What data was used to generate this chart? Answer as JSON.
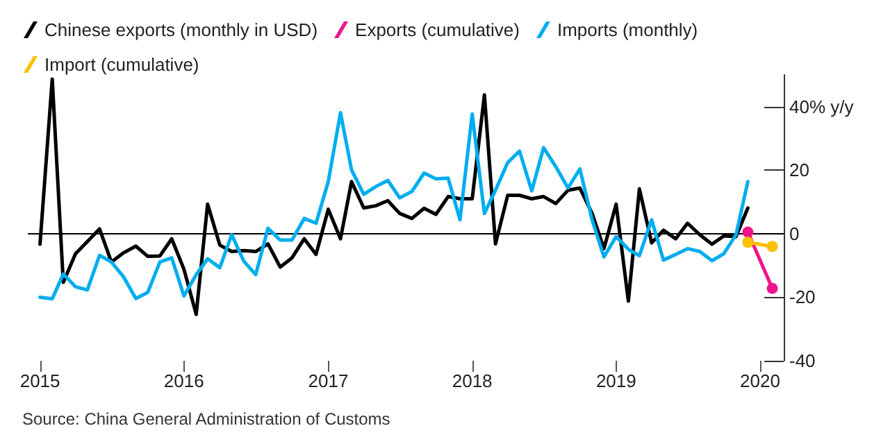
{
  "chart_data": {
    "type": "line",
    "x": [
      "2015-01",
      "2015-02",
      "2015-03",
      "2015-04",
      "2015-05",
      "2015-06",
      "2015-07",
      "2015-08",
      "2015-09",
      "2015-10",
      "2015-11",
      "2015-12",
      "2016-01",
      "2016-02",
      "2016-03",
      "2016-04",
      "2016-05",
      "2016-06",
      "2016-07",
      "2016-08",
      "2016-09",
      "2016-10",
      "2016-11",
      "2016-12",
      "2017-01",
      "2017-02",
      "2017-03",
      "2017-04",
      "2017-05",
      "2017-06",
      "2017-07",
      "2017-08",
      "2017-09",
      "2017-10",
      "2017-11",
      "2017-12",
      "2018-01",
      "2018-02",
      "2018-03",
      "2018-04",
      "2018-05",
      "2018-06",
      "2018-07",
      "2018-08",
      "2018-09",
      "2018-10",
      "2018-11",
      "2018-12",
      "2019-01",
      "2019-02",
      "2019-03",
      "2019-04",
      "2019-05",
      "2019-06",
      "2019-07",
      "2019-08",
      "2019-09",
      "2019-10",
      "2019-11",
      "2019-12"
    ],
    "series": [
      {
        "name": "Chinese exports (monthly in USD)",
        "color": "#000000",
        "values": [
          -3.3,
          48.7,
          -15.3,
          -6.3,
          -2.5,
          1.5,
          -8.9,
          -6,
          -3.9,
          -7.1,
          -7,
          -1.6,
          -11.2,
          -25.4,
          9.3,
          -3.6,
          -5.6,
          -5.3,
          -5.6,
          -3.2,
          -10.5,
          -7.6,
          -1.6,
          -6.5,
          7.7,
          -1.6,
          16.4,
          8.1,
          8.8,
          10.4,
          6.4,
          4.8,
          8,
          6.1,
          11.7,
          11,
          11,
          43.7,
          -3.2,
          12.1,
          12.1,
          11,
          11.7,
          9.5,
          13.7,
          14.4,
          6.4,
          -4.7,
          9.3,
          -21.2,
          14.1,
          -2.9,
          1.1,
          -1.6,
          3.3,
          -0.3,
          -3.3,
          -0.7,
          -0.9,
          8.1
        ]
      },
      {
        "name": "Exports (cumulative)",
        "color": "#f0148c",
        "x": [
          "2019-12",
          "2020-02"
        ],
        "values": [
          0.5,
          -17.2
        ],
        "marker": "circle"
      },
      {
        "name": "Imports (monthly)",
        "color": "#00adef",
        "values": [
          -20,
          -20.5,
          -12.7,
          -16.7,
          -17.7,
          -6.8,
          -8.9,
          -13.6,
          -20.4,
          -18.5,
          -8.9,
          -7.6,
          -19.6,
          -12.9,
          -7.9,
          -10.7,
          -0.3,
          -8.7,
          -12.9,
          1.7,
          -2,
          -2,
          4.8,
          3.3,
          16.4,
          38.1,
          20.1,
          12.4,
          14.8,
          16.8,
          11.3,
          13.3,
          19.1,
          17.3,
          17.5,
          4.4,
          37.7,
          6.4,
          13.7,
          22.4,
          26,
          13.5,
          27.1,
          21.1,
          14.4,
          20.4,
          4.4,
          -7.3,
          -0.9,
          -4.9,
          -6.9,
          4.4,
          -8.3,
          -6.5,
          -4.7,
          -5.6,
          -8.5,
          -6.3,
          -0.3,
          16.4
        ]
      },
      {
        "name": "Import (cumulative)",
        "color": "#fcc000",
        "x": [
          "2019-12",
          "2020-02"
        ],
        "values": [
          -2.7,
          -4.0
        ],
        "marker": "circle"
      }
    ],
    "xlim": [
      "2014-12",
      "2020-03"
    ],
    "xticks": [
      "2015",
      "2016",
      "2017",
      "2018",
      "2019",
      "2020"
    ],
    "ylim": [
      -40,
      50
    ],
    "yticks": [
      -40,
      -20,
      0,
      20,
      {
        "value": 40,
        "label": "40% y/y"
      }
    ],
    "ref_lines": [
      {
        "axis": "y",
        "value": 0,
        "label": null,
        "color": "#000000"
      }
    ],
    "grid": false,
    "marker": "none",
    "legend": "top left",
    "annotations": [
      "Source: China General Administration of Customs"
    ]
  }
}
